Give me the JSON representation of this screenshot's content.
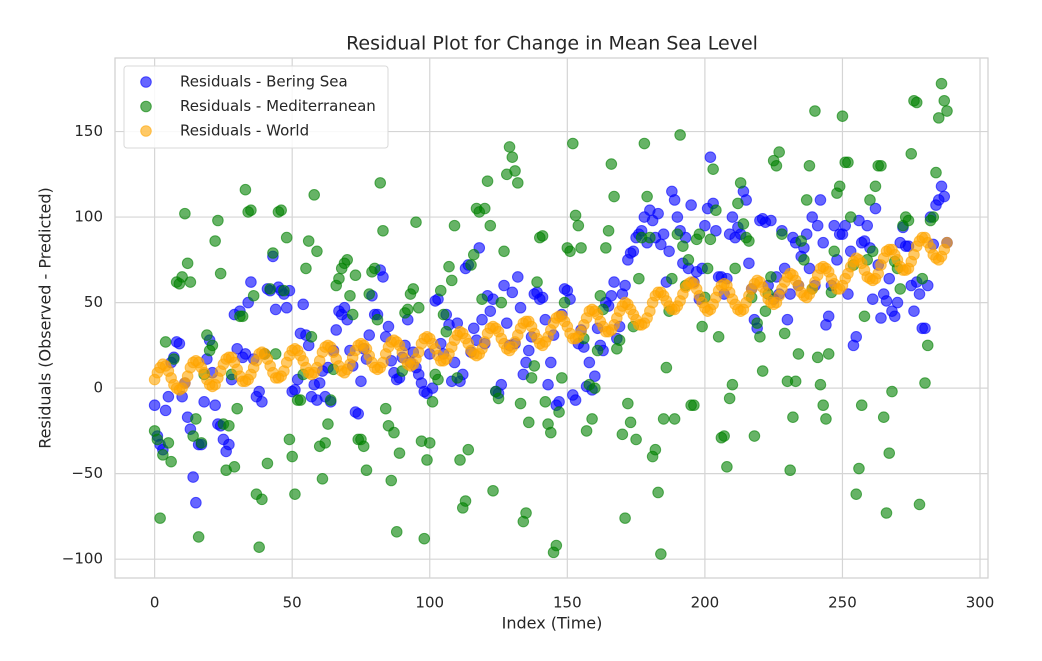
{
  "chart_data": {
    "type": "scatter",
    "title": "Residual Plot for Change in Mean Sea Level",
    "x_label": "Index (Time)",
    "y_label": "Residuals (Observed - Predicted)",
    "xlim": [
      -14.4,
      302.9
    ],
    "ylim": [
      -111,
      193
    ],
    "xticks": [
      0,
      50,
      100,
      150,
      200,
      250,
      300
    ],
    "yticks": [
      {
        "value": -100,
        "label": "−100"
      },
      {
        "value": -50,
        "label": "−50"
      },
      0,
      50,
      100,
      150
    ],
    "grid": true,
    "legend": "upper left",
    "x": [
      0,
      1,
      2,
      3,
      4,
      5,
      6,
      7,
      8,
      9,
      10,
      11,
      12,
      13,
      14,
      15,
      16,
      17,
      18,
      19,
      20,
      21,
      22,
      23,
      24,
      25,
      26,
      27,
      28,
      29,
      30,
      31,
      32,
      33,
      34,
      35,
      36,
      37,
      38,
      39,
      40,
      41,
      42,
      43,
      44,
      45,
      46,
      47,
      48,
      49,
      50,
      51,
      52,
      53,
      54,
      55,
      56,
      57,
      58,
      59,
      60,
      61,
      62,
      63,
      64,
      65,
      66,
      67,
      68,
      69,
      70,
      71,
      72,
      73,
      74,
      75,
      76,
      77,
      78,
      79,
      80,
      81,
      82,
      83,
      84,
      85,
      86,
      87,
      88,
      89,
      90,
      91,
      92,
      93,
      94,
      95,
      96,
      97,
      98,
      99,
      100,
      101,
      102,
      103,
      104,
      105,
      106,
      107,
      108,
      109,
      110,
      111,
      112,
      113,
      114,
      115,
      116,
      117,
      118,
      119,
      120,
      121,
      122,
      123,
      124,
      125,
      126,
      127,
      128,
      129,
      130,
      131,
      132,
      133,
      134,
      135,
      136,
      137,
      138,
      139,
      140,
      141,
      142,
      143,
      144,
      145,
      146,
      147,
      148,
      149,
      150,
      151,
      152,
      153,
      154,
      155,
      156,
      157,
      158,
      159,
      160,
      161,
      162,
      163,
      164,
      165,
      166,
      167,
      168,
      169,
      170,
      171,
      172,
      173,
      174,
      175,
      176,
      177,
      178,
      179,
      180,
      181,
      182,
      183,
      184,
      185,
      186,
      187,
      188,
      189,
      190,
      191,
      192,
      193,
      194,
      195,
      196,
      197,
      198,
      199,
      200,
      201,
      202,
      203,
      204,
      205,
      206,
      207,
      208,
      209,
      210,
      211,
      212,
      213,
      214,
      215,
      216,
      217,
      218,
      219,
      220,
      221,
      222,
      223,
      224,
      225,
      226,
      227,
      228,
      229,
      230,
      231,
      232,
      233,
      234,
      235,
      236,
      237,
      238,
      239,
      240,
      241,
      242,
      243,
      244,
      245,
      246,
      247,
      248,
      249,
      250,
      251,
      252,
      253,
      254,
      255,
      256,
      257,
      258,
      259,
      260,
      261,
      262,
      263,
      264,
      265,
      266,
      267,
      268,
      269,
      270,
      271,
      272,
      273,
      274,
      275,
      276,
      277,
      278,
      279,
      280,
      281,
      282,
      283,
      284,
      285,
      286,
      287,
      288
    ],
    "series": [
      {
        "name": "Residuals - Bering Sea",
        "color": "#0000ff",
        "values": [
          -10,
          -28,
          -33,
          -36,
          -13,
          -5,
          15,
          18,
          27,
          26,
          -5,
          3,
          -17,
          -24,
          -52,
          -67,
          -33,
          -33,
          -8,
          17,
          28,
          9,
          -10,
          -21,
          -22,
          -30,
          -37,
          -33,
          5,
          43,
          23,
          45,
          18,
          20,
          50,
          62,
          17,
          -5,
          -2,
          -8,
          20,
          58,
          57,
          77,
          46,
          59,
          57,
          55,
          47,
          57,
          -2,
          -1,
          5,
          32,
          49,
          31,
          25,
          -5,
          2,
          -7,
          3,
          10,
          -5,
          12,
          -8,
          22,
          34,
          45,
          43,
          47,
          40,
          22,
          13,
          -14,
          -15,
          4,
          23,
          17,
          31,
          54,
          43,
          43,
          69,
          65,
          30,
          36,
          16,
          9,
          5,
          6,
          18,
          25,
          40,
          15,
          21,
          12,
          8,
          3,
          -2,
          -3,
          20,
          0,
          51,
          52,
          26,
          20,
          43,
          37,
          4,
          15,
          38,
          4,
          8,
          70,
          72,
          21,
          35,
          28,
          82,
          40,
          26,
          54,
          45,
          52,
          -2,
          -3,
          2,
          60,
          38,
          25,
          56,
          26,
          65,
          47,
          8,
          15,
          22,
          30,
          55,
          56,
          52,
          53,
          40,
          2,
          15,
          31,
          -10,
          -8,
          43,
          58,
          57,
          52,
          -4,
          -7,
          26,
          34,
          24,
          1,
          15,
          -1,
          7,
          35,
          25,
          22,
          50,
          48,
          54,
          62,
          29,
          36,
          55,
          60,
          75,
          79,
          80,
          88,
          90,
          92,
          100,
          85,
          104,
          98,
          88,
          102,
          84,
          90,
          62,
          80,
          115,
          110,
          100,
          92,
          73,
          88,
          70,
          107,
          62,
          68,
          52,
          70,
          95,
          105,
          135,
          108,
          92,
          65,
          65,
          55,
          64,
          90,
          100,
          88,
          94,
          90,
          115,
          110,
          73,
          58,
          40,
          35,
          98,
          99,
          97,
          60,
          98,
          52,
          65,
          55,
          92,
          70,
          40,
          55,
          88,
          85,
          60,
          77,
          82,
          90,
          70,
          100,
          60,
          95,
          110,
          85,
          37,
          42,
          60,
          95,
          75,
          90,
          90,
          95,
          55,
          80,
          25,
          30,
          98,
          85,
          86,
          95,
          82,
          52,
          105,
          72,
          41,
          55,
          51,
          64,
          45,
          42,
          50,
          85,
          94,
          83,
          83,
          60,
          45,
          62,
          55,
          35,
          35,
          60,
          100,
          84,
          107,
          110,
          118,
          112,
          85
        ]
      },
      {
        "name": "Residuals - Mediterranean",
        "color": "#008000",
        "values": [
          -25,
          -30,
          -76,
          -39,
          27,
          -32,
          -43,
          17,
          62,
          61,
          65,
          102,
          73,
          62,
          -28,
          -18,
          -87,
          -32,
          8,
          31,
          22,
          25,
          86,
          98,
          67,
          -21,
          -48,
          -22,
          8,
          -46,
          -12,
          42,
          42,
          116,
          103,
          104,
          54,
          -62,
          -93,
          -65,
          20,
          -44,
          58,
          79,
          20,
          103,
          104,
          57,
          88,
          -30,
          -40,
          -62,
          -7,
          -7,
          8,
          70,
          86,
          30,
          113,
          80,
          -34,
          -53,
          -32,
          -21,
          -7,
          11,
          60,
          64,
          70,
          73,
          75,
          54,
          43,
          66,
          -30,
          -30,
          -34,
          -48,
          55,
          68,
          70,
          40,
          120,
          92,
          -12,
          -22,
          -54,
          -26,
          -84,
          -38,
          10,
          44,
          46,
          55,
          58,
          97,
          47,
          -31,
          -88,
          -42,
          -32,
          -8,
          8,
          5,
          57,
          43,
          33,
          71,
          63,
          95,
          6,
          -42,
          -70,
          -66,
          -36,
          72,
          78,
          105,
          103,
          52,
          105,
          121,
          95,
          -60,
          -2,
          -6,
          50,
          80,
          125,
          141,
          135,
          127,
          120,
          -9,
          -78,
          -73,
          -20,
          6,
          13,
          62,
          88,
          89,
          -8,
          -21,
          -26,
          -96,
          -92,
          -14,
          6,
          50,
          82,
          80,
          143,
          101,
          95,
          82,
          29,
          -25,
          2,
          -18,
          0,
          22,
          54,
          46,
          82,
          92,
          131,
          112,
          23,
          28,
          -27,
          -76,
          -9,
          -20,
          36,
          -30,
          64,
          88,
          143,
          112,
          88,
          -40,
          -36,
          -61,
          -97,
          -18,
          12,
          45,
          64,
          -18,
          90,
          148,
          83,
          60,
          75,
          -10,
          -10,
          87,
          90,
          36,
          53,
          70,
          87,
          128,
          104,
          30,
          -29,
          -28,
          -46,
          -6,
          2,
          70,
          108,
          120,
          96,
          88,
          86,
          53,
          -28,
          38,
          30,
          10,
          45,
          55,
          65,
          133,
          130,
          138,
          90,
          32,
          4,
          -48,
          -17,
          4,
          20,
          86,
          75,
          110,
          130,
          58,
          162,
          18,
          2,
          -10,
          -18,
          20,
          56,
          80,
          114,
          118,
          159,
          132,
          132,
          100,
          72,
          -62,
          -47,
          -10,
          42,
          75,
          110,
          80,
          118,
          130,
          130,
          -17,
          -73,
          -38,
          -2,
          74,
          70,
          58,
          95,
          100,
          98,
          137,
          168,
          167,
          -68,
          64,
          3,
          25,
          98,
          100,
          126,
          158,
          178,
          168,
          162
        ]
      },
      {
        "name": "Residuals - World",
        "color": "#ffa500",
        "values": [
          5,
          9,
          12,
          14,
          13,
          10,
          6,
          2,
          0,
          -1,
          0,
          3,
          7,
          12,
          15,
          16,
          15,
          12,
          9,
          5,
          2,
          1,
          2,
          6,
          10,
          14,
          17,
          18,
          18,
          15,
          11,
          7,
          4,
          4,
          5,
          8,
          12,
          16,
          20,
          21,
          20,
          17,
          13,
          9,
          6,
          6,
          7,
          10,
          15,
          19,
          22,
          23,
          22,
          19,
          16,
          12,
          9,
          8,
          9,
          12,
          16,
          21,
          24,
          25,
          24,
          21,
          17,
          13,
          10,
          9,
          11,
          14,
          18,
          22,
          25,
          26,
          25,
          23,
          19,
          15,
          12,
          11,
          12,
          15,
          20,
          24,
          27,
          28,
          27,
          25,
          21,
          17,
          14,
          13,
          14,
          17,
          21,
          26,
          29,
          30,
          29,
          26,
          23,
          19,
          16,
          16,
          17,
          20,
          24,
          28,
          31,
          33,
          32,
          29,
          26,
          22,
          20,
          19,
          20,
          23,
          27,
          32,
          35,
          36,
          35,
          33,
          29,
          26,
          23,
          22,
          24,
          27,
          31,
          35,
          38,
          39,
          39,
          36,
          32,
          29,
          26,
          25,
          27,
          30,
          34,
          38,
          41,
          42,
          42,
          39,
          36,
          32,
          29,
          29,
          30,
          33,
          37,
          41,
          45,
          46,
          45,
          43,
          39,
          36,
          33,
          33,
          34,
          37,
          41,
          45,
          48,
          50,
          49,
          46,
          43,
          40,
          37,
          37,
          38,
          41,
          45,
          50,
          54,
          56,
          56,
          54,
          51,
          48,
          46,
          46,
          48,
          51,
          55,
          59,
          61,
          62,
          61,
          58,
          54,
          50,
          47,
          45,
          46,
          49,
          53,
          57,
          60,
          61,
          60,
          56,
          52,
          49,
          46,
          45,
          46,
          50,
          54,
          58,
          61,
          63,
          62,
          59,
          56,
          52,
          50,
          49,
          50,
          54,
          58,
          62,
          65,
          67,
          66,
          63,
          60,
          56,
          54,
          53,
          55,
          58,
          62,
          66,
          70,
          71,
          70,
          68,
          64,
          61,
          58,
          58,
          60,
          64,
          67,
          71,
          74,
          76,
          75,
          73,
          69,
          65,
          64,
          63,
          64,
          67,
          72,
          76,
          80,
          81,
          81,
          78,
          75,
          71,
          69,
          69,
          70,
          74,
          78,
          83,
          86,
          88,
          88,
          85,
          82,
          78,
          76,
          75,
          77,
          81,
          85
        ]
      }
    ]
  }
}
